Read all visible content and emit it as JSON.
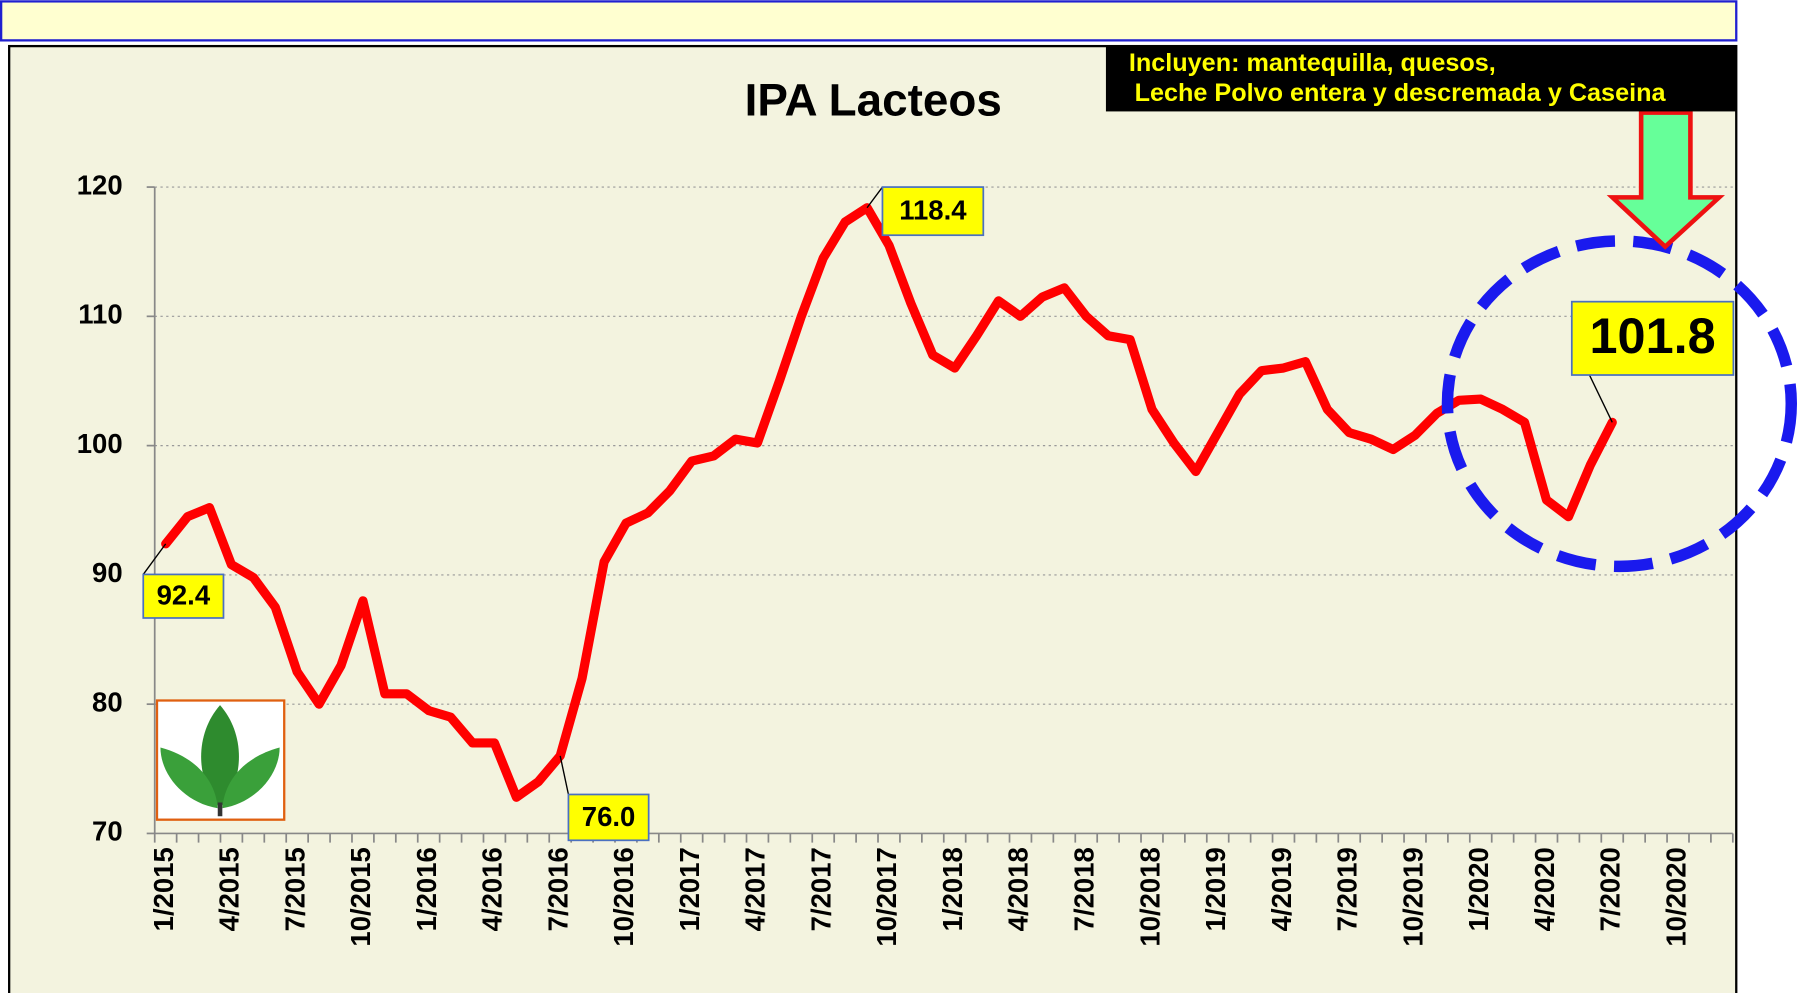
{
  "chart_data": {
    "type": "line",
    "title": "IPA Lacteos",
    "categories": [
      "1/2015",
      null,
      null,
      "4/2015",
      null,
      null,
      "7/2015",
      null,
      null,
      "10/2015",
      null,
      null,
      "1/2016",
      null,
      null,
      "4/2016",
      null,
      null,
      "7/2016",
      null,
      null,
      "10/2016",
      null,
      null,
      "1/2017",
      null,
      null,
      "4/2017",
      null,
      null,
      "7/2017",
      null,
      null,
      "10/2017",
      null,
      null,
      "1/2018",
      null,
      null,
      "4/2018",
      null,
      null,
      "7/2018",
      null,
      null,
      "10/2018",
      null,
      null,
      "1/2019",
      null,
      null,
      "4/2019",
      null,
      null,
      "7/2019",
      null,
      null,
      "10/2019",
      null,
      null,
      "1/2020",
      null,
      null,
      "4/2020",
      null,
      null,
      "7/2020",
      null,
      null,
      "10/2020",
      null,
      null
    ],
    "series": [
      {
        "name": "IPA Lacteos",
        "color": "#ff0000",
        "values": [
          92.4,
          94.5,
          95.2,
          90.8,
          89.8,
          87.5,
          82.5,
          80.0,
          83.0,
          88.0,
          80.8,
          80.8,
          79.5,
          79.0,
          77.0,
          77.0,
          72.8,
          74.0,
          76.0,
          82.0,
          91.0,
          94.0,
          94.8,
          96.5,
          98.8,
          99.2,
          100.5,
          100.2,
          105.0,
          110.0,
          114.5,
          117.3,
          118.4,
          115.5,
          111.0,
          107.0,
          106.0,
          108.5,
          111.2,
          110.0,
          111.5,
          112.2,
          110.0,
          108.5,
          108.2,
          102.8,
          100.2,
          98.0,
          101.0,
          104.0,
          105.8,
          106.0,
          106.5,
          102.8,
          101.0,
          100.5,
          99.7,
          100.8,
          102.5,
          103.5,
          103.6,
          102.8,
          101.8,
          95.8,
          94.5,
          98.5,
          101.8,
          null,
          null,
          null,
          null,
          null
        ],
        "value_labels": [
          "92.4",
          null,
          null,
          null,
          null,
          null,
          null,
          null,
          null,
          null,
          null,
          null,
          null,
          null,
          null,
          null,
          null,
          null,
          "76.0",
          null,
          null,
          null,
          null,
          null,
          null,
          null,
          null,
          null,
          null,
          null,
          null,
          null,
          "118.4",
          null,
          null,
          null,
          null,
          null,
          null,
          null,
          null,
          null,
          null,
          null,
          null,
          null,
          null,
          null,
          null,
          null,
          null,
          null,
          null,
          null,
          null,
          null,
          null,
          null,
          null,
          null,
          null,
          null,
          null,
          null,
          null,
          null,
          "101.8",
          null,
          null,
          null,
          null,
          null
        ]
      }
    ],
    "ylim": [
      70,
      120
    ],
    "yticks": [
      70,
      80,
      90,
      100,
      110,
      120
    ],
    "grid": true,
    "annotations": [
      "Incluyen: mantequilla, quesos,",
      "Leche Polvo entera y descremada y Caseina"
    ]
  }
}
